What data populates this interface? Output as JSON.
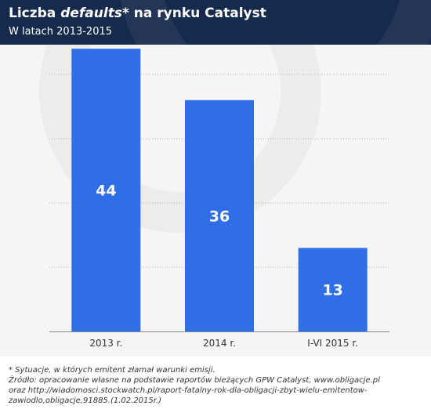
{
  "header": {
    "title_before": "Liczba ",
    "title_emph": "defaults*",
    "title_after": " na rynku Catalyst",
    "subtitle": "W latach 2013-2015"
  },
  "colors": {
    "header_bg": "#162a4c",
    "bar": "#2f6ee6",
    "grid": "#b8b8b8",
    "axis": "#888888",
    "chart_bg": "#f5f5f5"
  },
  "chart_data": {
    "type": "bar",
    "categories": [
      "2013 r.",
      "2014 r.",
      "I-VI 2015 r."
    ],
    "values": [
      44,
      36,
      13
    ],
    "data_labels": [
      "44",
      "36",
      "13"
    ],
    "ylim": [
      0,
      50
    ],
    "grid": true,
    "xlabel": "",
    "ylabel": ""
  },
  "footnotes": [
    "* Sytuacje, w których emitent złamał warunki emisji.",
    "Źródło: opracowanie własne na podstawie raportów bieżących GPW Catalyst, www.obligacje.pl",
    "oraz http://wiadomosci.stockwatch.pl/raport-fatalny-rok-dla-obligacji-zbyt-wielu-emitentow-",
    "zawiodlo,obligacje,91885.(1.02.2015r.)"
  ]
}
